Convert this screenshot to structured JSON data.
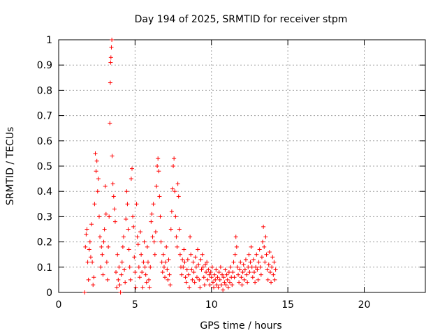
{
  "chart_data": {
    "type": "scatter",
    "title": "Day 194 of 2025, SRMTID for receiver stpm",
    "xlabel": "GPS time / hours",
    "ylabel": "SRMTID / TECUs",
    "xlim": [
      0,
      24
    ],
    "ylim": [
      0,
      1
    ],
    "xticks": [
      0,
      5,
      10,
      15,
      20
    ],
    "yticks": [
      0,
      0.1,
      0.2,
      0.3,
      0.4,
      0.5,
      0.6,
      0.7,
      0.8,
      0.9,
      1
    ],
    "xtick_labels": [
      "0",
      "5",
      "10",
      "15",
      "20"
    ],
    "ytick_labels": [
      "0",
      "0.1",
      "0.2",
      "0.3",
      "0.4",
      "0.5",
      "0.6",
      "0.7",
      "0.8",
      "0.9",
      "1"
    ],
    "grid": true,
    "marker": "+",
    "series": [
      {
        "name": "stpm",
        "color": "#ff0000",
        "points": [
          [
            1.7,
            0.0
          ],
          [
            1.75,
            0.18
          ],
          [
            1.8,
            0.23
          ],
          [
            1.85,
            0.25
          ],
          [
            1.9,
            0.12
          ],
          [
            1.95,
            0.05
          ],
          [
            2.0,
            0.17
          ],
          [
            2.05,
            0.2
          ],
          [
            2.1,
            0.14
          ],
          [
            2.15,
            0.27
          ],
          [
            2.2,
            0.12
          ],
          [
            2.25,
            0.03
          ],
          [
            2.3,
            0.06
          ],
          [
            2.35,
            0.35
          ],
          [
            2.4,
            0.55
          ],
          [
            2.45,
            0.48
          ],
          [
            2.5,
            0.52
          ],
          [
            2.55,
            0.4
          ],
          [
            2.6,
            0.45
          ],
          [
            2.65,
            0.3
          ],
          [
            2.7,
            0.22
          ],
          [
            2.75,
            0.1
          ],
          [
            2.8,
            0.18
          ],
          [
            2.85,
            0.15
          ],
          [
            2.9,
            0.07
          ],
          [
            2.95,
            0.2
          ],
          [
            3.0,
            0.25
          ],
          [
            3.05,
            0.42
          ],
          [
            3.1,
            0.31
          ],
          [
            3.15,
            0.12
          ],
          [
            3.2,
            0.05
          ],
          [
            3.25,
            0.18
          ],
          [
            3.3,
            0.3
          ],
          [
            3.35,
            0.67
          ],
          [
            3.38,
            0.83
          ],
          [
            3.4,
            0.91
          ],
          [
            3.42,
            0.93
          ],
          [
            3.45,
            0.97
          ],
          [
            3.48,
            1.0
          ],
          [
            3.5,
            0.54
          ],
          [
            3.55,
            0.43
          ],
          [
            3.6,
            0.38
          ],
          [
            3.65,
            0.33
          ],
          [
            3.7,
            0.28
          ],
          [
            3.75,
            0.08
          ],
          [
            3.8,
            0.02
          ],
          [
            3.85,
            0.15
          ],
          [
            3.9,
            0.05
          ],
          [
            3.95,
            0.1
          ],
          [
            4.0,
            0.03
          ],
          [
            4.05,
            0.0
          ],
          [
            4.1,
            0.07
          ],
          [
            4.15,
            0.12
          ],
          [
            4.2,
            0.18
          ],
          [
            4.25,
            0.22
          ],
          [
            4.3,
            0.09
          ],
          [
            4.35,
            0.04
          ],
          [
            4.4,
            0.29
          ],
          [
            4.45,
            0.4
          ],
          [
            4.5,
            0.35
          ],
          [
            4.55,
            0.25
          ],
          [
            4.6,
            0.17
          ],
          [
            4.65,
            0.1
          ],
          [
            4.7,
            0.05
          ],
          [
            4.75,
            0.45
          ],
          [
            4.8,
            0.49
          ],
          [
            4.85,
            0.3
          ],
          [
            4.9,
            0.26
          ],
          [
            4.95,
            0.14
          ],
          [
            5.0,
            0.08
          ],
          [
            5.05,
            0.02
          ],
          [
            5.1,
            0.35
          ],
          [
            5.15,
            0.22
          ],
          [
            5.2,
            0.19
          ],
          [
            5.25,
            0.1
          ],
          [
            5.3,
            0.06
          ],
          [
            5.35,
            0.24
          ],
          [
            5.4,
            0.15
          ],
          [
            5.45,
            0.08
          ],
          [
            5.5,
            0.02
          ],
          [
            5.55,
            0.12
          ],
          [
            5.6,
            0.2
          ],
          [
            5.65,
            0.1
          ],
          [
            5.7,
            0.07
          ],
          [
            5.75,
            0.04
          ],
          [
            5.8,
            0.18
          ],
          [
            5.85,
            0.12
          ],
          [
            5.9,
            0.05
          ],
          [
            5.95,
            0.02
          ],
          [
            6.0,
            0.1
          ],
          [
            6.05,
            0.28
          ],
          [
            6.1,
            0.31
          ],
          [
            6.15,
            0.22
          ],
          [
            6.2,
            0.35
          ],
          [
            6.25,
            0.2
          ],
          [
            6.3,
            0.15
          ],
          [
            6.35,
            0.24
          ],
          [
            6.4,
            0.42
          ],
          [
            6.45,
            0.5
          ],
          [
            6.5,
            0.53
          ],
          [
            6.55,
            0.48
          ],
          [
            6.6,
            0.38
          ],
          [
            6.65,
            0.3
          ],
          [
            6.7,
            0.2
          ],
          [
            6.75,
            0.12
          ],
          [
            6.8,
            0.08
          ],
          [
            6.85,
            0.15
          ],
          [
            6.9,
            0.1
          ],
          [
            6.95,
            0.06
          ],
          [
            7.0,
            0.12
          ],
          [
            7.05,
            0.18
          ],
          [
            7.1,
            0.09
          ],
          [
            7.15,
            0.05
          ],
          [
            7.2,
            0.13
          ],
          [
            7.25,
            0.07
          ],
          [
            7.3,
            0.03
          ],
          [
            7.35,
            0.25
          ],
          [
            7.4,
            0.32
          ],
          [
            7.45,
            0.41
          ],
          [
            7.5,
            0.5
          ],
          [
            7.55,
            0.53
          ],
          [
            7.6,
            0.4
          ],
          [
            7.65,
            0.3
          ],
          [
            7.7,
            0.22
          ],
          [
            7.75,
            0.18
          ],
          [
            7.8,
            0.43
          ],
          [
            7.85,
            0.38
          ],
          [
            7.9,
            0.25
          ],
          [
            7.95,
            0.15
          ],
          [
            8.0,
            0.1
          ],
          [
            8.05,
            0.07
          ],
          [
            8.1,
            0.13
          ],
          [
            8.15,
            0.1
          ],
          [
            8.2,
            0.17
          ],
          [
            8.25,
            0.12
          ],
          [
            8.3,
            0.06
          ],
          [
            8.35,
            0.04
          ],
          [
            8.4,
            0.09
          ],
          [
            8.45,
            0.13
          ],
          [
            8.5,
            0.07
          ],
          [
            8.55,
            0.02
          ],
          [
            8.6,
            0.22
          ],
          [
            8.65,
            0.15
          ],
          [
            8.7,
            0.09
          ],
          [
            8.75,
            0.05
          ],
          [
            8.8,
            0.12
          ],
          [
            8.85,
            0.08
          ],
          [
            8.9,
            0.04
          ],
          [
            8.95,
            0.14
          ],
          [
            9.0,
            0.1
          ],
          [
            9.05,
            0.06
          ],
          [
            9.1,
            0.17
          ],
          [
            9.15,
            0.11
          ],
          [
            9.2,
            0.05
          ],
          [
            9.25,
            0.02
          ],
          [
            9.3,
            0.13
          ],
          [
            9.35,
            0.09
          ],
          [
            9.4,
            0.15
          ],
          [
            9.45,
            0.1
          ],
          [
            9.5,
            0.06
          ],
          [
            9.55,
            0.03
          ],
          [
            9.6,
            0.11
          ],
          [
            9.65,
            0.08
          ],
          [
            9.7,
            0.12
          ],
          [
            9.75,
            0.05
          ],
          [
            9.8,
            0.09
          ],
          [
            9.85,
            0.07
          ],
          [
            9.9,
            0.03
          ],
          [
            9.95,
            0.08
          ],
          [
            10.0,
            0.06
          ],
          [
            10.05,
            0.1
          ],
          [
            10.1,
            0.04
          ],
          [
            10.15,
            0.02
          ],
          [
            10.2,
            0.07
          ],
          [
            10.25,
            0.05
          ],
          [
            10.3,
            0.09
          ],
          [
            10.35,
            0.03
          ],
          [
            10.4,
            0.06
          ],
          [
            10.45,
            0.02
          ],
          [
            10.5,
            0.08
          ],
          [
            10.55,
            0.05
          ],
          [
            10.6,
            0.1
          ],
          [
            10.65,
            0.03
          ],
          [
            10.7,
            0.07
          ],
          [
            10.75,
            0.01
          ],
          [
            10.8,
            0.06
          ],
          [
            10.85,
            0.04
          ],
          [
            10.9,
            0.09
          ],
          [
            10.95,
            0.03
          ],
          [
            11.0,
            0.07
          ],
          [
            11.05,
            0.05
          ],
          [
            11.1,
            0.02
          ],
          [
            11.15,
            0.08
          ],
          [
            11.2,
            0.04
          ],
          [
            11.25,
            0.1
          ],
          [
            11.3,
            0.06
          ],
          [
            11.35,
            0.03
          ],
          [
            11.4,
            0.08
          ],
          [
            11.45,
            0.12
          ],
          [
            11.5,
            0.06
          ],
          [
            11.55,
            0.15
          ],
          [
            11.6,
            0.22
          ],
          [
            11.65,
            0.18
          ],
          [
            11.7,
            0.1
          ],
          [
            11.75,
            0.07
          ],
          [
            11.8,
            0.04
          ],
          [
            11.85,
            0.09
          ],
          [
            11.9,
            0.12
          ],
          [
            11.95,
            0.06
          ],
          [
            12.0,
            0.03
          ],
          [
            12.05,
            0.08
          ],
          [
            12.1,
            0.11
          ],
          [
            12.15,
            0.05
          ],
          [
            12.2,
            0.09
          ],
          [
            12.25,
            0.13
          ],
          [
            12.3,
            0.07
          ],
          [
            12.35,
            0.04
          ],
          [
            12.4,
            0.1
          ],
          [
            12.45,
            0.15
          ],
          [
            12.5,
            0.08
          ],
          [
            12.55,
            0.12
          ],
          [
            12.6,
            0.18
          ],
          [
            12.65,
            0.1
          ],
          [
            12.7,
            0.06
          ],
          [
            12.75,
            0.13
          ],
          [
            12.8,
            0.08
          ],
          [
            12.85,
            0.04
          ],
          [
            12.9,
            0.1
          ],
          [
            12.95,
            0.15
          ],
          [
            13.0,
            0.09
          ],
          [
            13.05,
            0.05
          ],
          [
            13.1,
            0.12
          ],
          [
            13.15,
            0.17
          ],
          [
            13.2,
            0.1
          ],
          [
            13.25,
            0.07
          ],
          [
            13.3,
            0.14
          ],
          [
            13.35,
            0.2
          ],
          [
            13.4,
            0.26
          ],
          [
            13.45,
            0.18
          ],
          [
            13.5,
            0.12
          ],
          [
            13.55,
            0.22
          ],
          [
            13.6,
            0.15
          ],
          [
            13.65,
            0.09
          ],
          [
            13.7,
            0.05
          ],
          [
            13.75,
            0.11
          ],
          [
            13.8,
            0.16
          ],
          [
            13.85,
            0.08
          ],
          [
            13.9,
            0.04
          ],
          [
            13.95,
            0.1
          ],
          [
            14.0,
            0.14
          ],
          [
            14.05,
            0.07
          ],
          [
            14.1,
            0.12
          ],
          [
            14.15,
            0.05
          ],
          [
            14.2,
            0.09
          ]
        ]
      }
    ]
  }
}
